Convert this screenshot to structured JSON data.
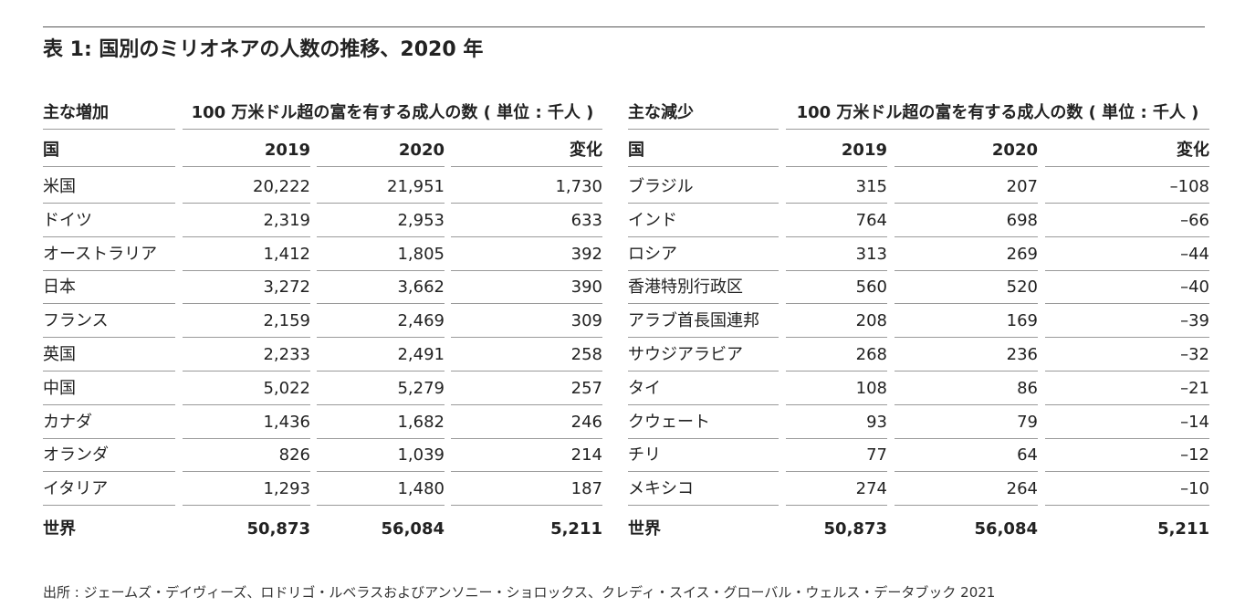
{
  "title": "表 1: 国別のミリオネアの人数の推移、2020 年",
  "tables": [
    {
      "group_label": "主な増加",
      "measure_label": "100 万米ドル超の富を有する成人の数 ( 単位 : 千人 )",
      "columns": [
        "国",
        "2019",
        "2020",
        "変化"
      ],
      "rows": [
        [
          "米国",
          "20,222",
          "21,951",
          "1,730"
        ],
        [
          "ドイツ",
          "2,319",
          "2,953",
          "633"
        ],
        [
          "オーストラリア",
          "1,412",
          "1,805",
          "392"
        ],
        [
          "日本",
          "3,272",
          "3,662",
          "390"
        ],
        [
          "フランス",
          "2,159",
          "2,469",
          "309"
        ],
        [
          "英国",
          "2,233",
          "2,491",
          "258"
        ],
        [
          "中国",
          "5,022",
          "5,279",
          "257"
        ],
        [
          "カナダ",
          "1,436",
          "1,682",
          "246"
        ],
        [
          "オランダ",
          "826",
          "1,039",
          "214"
        ],
        [
          "イタリア",
          "1,293",
          "1,480",
          "187"
        ]
      ],
      "total": [
        "世界",
        "50,873",
        "56,084",
        "5,211"
      ]
    },
    {
      "group_label": "主な減少",
      "measure_label": "100 万米ドル超の富を有する成人の数 ( 単位 : 千人 )",
      "columns": [
        "国",
        "2019",
        "2020",
        "変化"
      ],
      "rows": [
        [
          "ブラジル",
          "315",
          "207",
          "–108"
        ],
        [
          "インド",
          "764",
          "698",
          "–66"
        ],
        [
          "ロシア",
          "313",
          "269",
          "–44"
        ],
        [
          "香港特別行政区",
          "560",
          "520",
          "–40"
        ],
        [
          "アラブ首長国連邦",
          "208",
          "169",
          "–39"
        ],
        [
          "サウジアラビア",
          "268",
          "236",
          "–32"
        ],
        [
          "タイ",
          "108",
          "86",
          "–21"
        ],
        [
          "クウェート",
          "93",
          "79",
          "–14"
        ],
        [
          "チリ",
          "77",
          "64",
          "–12"
        ],
        [
          "メキシコ",
          "274",
          "264",
          "–10"
        ]
      ],
      "total": [
        "世界",
        "50,873",
        "56,084",
        "5,211"
      ]
    }
  ],
  "source": "出所 : ジェームズ・デイヴィーズ、ロドリゴ・ルベラスおよびアンソニー・ショロックス、クレディ・スイス・グローバル・ウェルス・データブック 2021"
}
